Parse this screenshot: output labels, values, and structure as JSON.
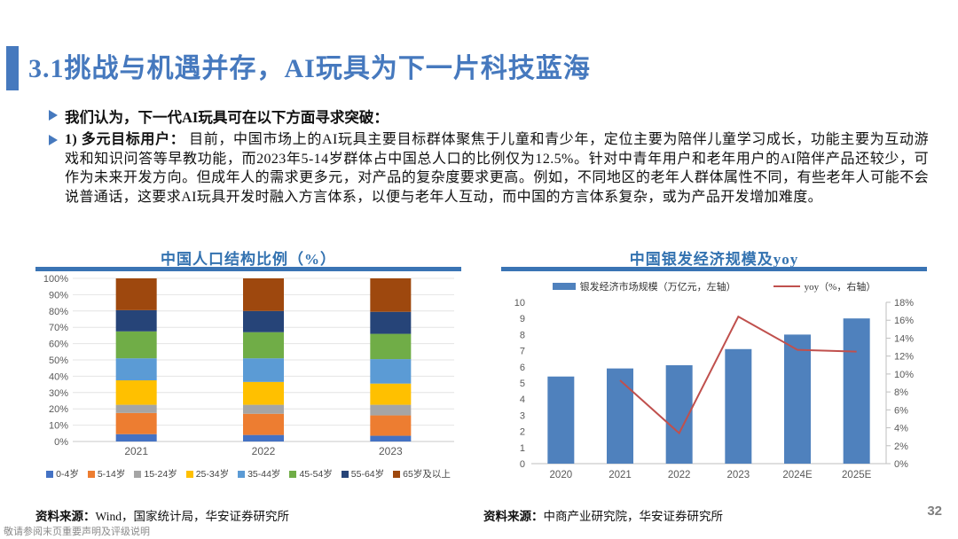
{
  "header": {
    "title": "3.1挑战与机遇并存，AI玩具为下一片科技蓝海"
  },
  "bullets": {
    "intro": "我们认为，下一代AI玩具可在以下方面寻求突破：",
    "item1_lead": "1) 多元目标用户：",
    "item1_body": "目前，中国市场上的AI玩具主要目标群体聚焦于儿童和青少年，定位主要为陪伴儿童学习成长，功能主要为互动游戏和知识问答等早教功能，而2023年5-14岁群体占中国总人口的比例仅为12.5%。针对中青年用户和老年用户的AI陪伴产品还较少，可作为未来开发方向。但成年人的需求更多元，对产品的复杂度要求更高。例如，不同地区的老年人群体属性不同，有些老年人可能不会说普通话，这要求AI玩具开发时融入方言体系，以便与老年人互动，而中国的方言体系复杂，或为产品开发增加难度。"
  },
  "footer": {
    "source_left": "资料来源：",
    "source_left_body": "Wind，国家统计局，华安证券研究所",
    "source_right": "资料来源：",
    "source_right_body": "中商产业研究院，华安证券研究所",
    "page_number": "32",
    "disclaimer": "敬请参阅末页重要声明及评级说明"
  },
  "chart_data": [
    {
      "type": "bar",
      "stacked": true,
      "title": "中国人口结构比例（%）",
      "categories": [
        "2021",
        "2022",
        "2023"
      ],
      "series": [
        {
          "name": "0-4岁",
          "color": "#4472C4",
          "values": [
            4.5,
            4.0,
            3.5
          ]
        },
        {
          "name": "5-14岁",
          "color": "#ED7D31",
          "values": [
            13.0,
            13.0,
            12.5
          ]
        },
        {
          "name": "15-24岁",
          "color": "#A5A5A5",
          "values": [
            5.0,
            5.5,
            6.5
          ]
        },
        {
          "name": "25-34岁",
          "color": "#FFC000",
          "values": [
            15.0,
            14.0,
            13.0
          ]
        },
        {
          "name": "35-44岁",
          "color": "#5B9BD5",
          "values": [
            13.5,
            14.5,
            15.0
          ]
        },
        {
          "name": "45-54岁",
          "color": "#70AD47",
          "values": [
            16.5,
            16.0,
            15.5
          ]
        },
        {
          "name": "55-64岁",
          "color": "#264478",
          "values": [
            13.0,
            13.0,
            13.5
          ]
        },
        {
          "name": "65岁及以上",
          "color": "#9E480E",
          "values": [
            19.5,
            20.0,
            20.5
          ]
        }
      ],
      "ylabel": "",
      "xlabel": "",
      "ylim": [
        0,
        100
      ],
      "ytick_step": 10,
      "ytick_format": "percent",
      "grid": true,
      "legend_position": "bottom"
    },
    {
      "type": "combo",
      "title": "中国银发经济规模及yoy",
      "categories": [
        "2020",
        "2021",
        "2022",
        "2023",
        "2024E",
        "2025E"
      ],
      "bar_series": {
        "name": "银发经济市场规模（万亿元，左轴）",
        "color": "#4F81BD",
        "values": [
          5.4,
          5.9,
          6.1,
          7.1,
          8.0,
          9.0
        ]
      },
      "line_series": {
        "name": "yoy（%，右轴）",
        "color": "#C0504D",
        "values": [
          null,
          9.3,
          3.4,
          16.4,
          12.7,
          12.5
        ]
      },
      "left_axis": {
        "min": 0,
        "max": 10,
        "step": 1
      },
      "right_axis": {
        "min": 0,
        "max": 18,
        "step": 2,
        "format": "percent"
      },
      "grid": false,
      "legend_position": "top"
    }
  ]
}
